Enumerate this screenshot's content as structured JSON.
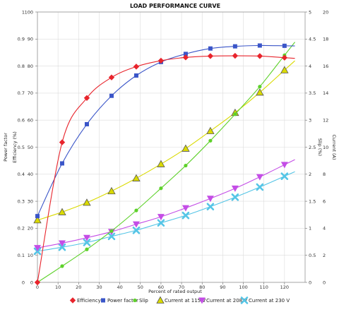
{
  "chart_data": {
    "type": "line",
    "title": "LOAD PERFORMANCE CURVE",
    "xlabel": "Percent of rated output",
    "xlim": [
      0,
      130
    ],
    "x_ticks": [
      "0",
      "10",
      "20",
      "30",
      "40",
      "50",
      "60",
      "70",
      "80",
      "90",
      "100",
      "110",
      "120"
    ],
    "left_axes": {
      "efficiency_label": "Efficiency (%)",
      "efficiency_lim": [
        0,
        100
      ],
      "efficiency_ticks": [
        "0",
        "10",
        "20",
        "30",
        "40",
        "50",
        "60",
        "70",
        "80",
        "90",
        "100"
      ],
      "power_factor_label": "Power factor",
      "power_factor_lim": [
        0,
        1
      ],
      "power_factor_ticks": [
        "0",
        "0.1",
        "0.2",
        "0.3",
        "0.4",
        "0.5",
        "0.6",
        "0.7",
        "0.8",
        "0.9",
        "1"
      ]
    },
    "right_axes": {
      "slip_label": "Slip (%)",
      "slip_lim": [
        0,
        5
      ],
      "slip_ticks": [
        "0",
        "0.5",
        "1",
        "1.5",
        "2",
        "2.5",
        "3",
        "3.5",
        "4",
        "4.5",
        "5"
      ],
      "current_label": "Current (A)",
      "current_lim": [
        0,
        20
      ],
      "current_ticks": [
        "0",
        "2",
        "4",
        "6",
        "8",
        "10",
        "12",
        "14",
        "16",
        "18",
        "20"
      ]
    },
    "grid": true,
    "legend_position": "bottom",
    "series": [
      {
        "name": "Efficiency",
        "axis": "efficiency",
        "color": "#e8242c",
        "marker": "diamond",
        "x": [
          0,
          12,
          24,
          36,
          48,
          60,
          72,
          84,
          96,
          108,
          120
        ],
        "y": [
          0,
          51.8,
          68.2,
          75.8,
          79.8,
          82,
          83.2,
          83.7,
          83.8,
          83.7,
          83.1
        ]
      },
      {
        "name": "Power factor",
        "axis": "power_factor",
        "color": "#3a55c8",
        "marker": "square",
        "x": [
          0,
          12,
          24,
          36,
          48,
          60,
          72,
          84,
          96,
          108,
          120
        ],
        "y": [
          0.245,
          0.44,
          0.585,
          0.69,
          0.765,
          0.815,
          0.845,
          0.865,
          0.873,
          0.876,
          0.875
        ]
      },
      {
        "name": "Slip",
        "axis": "slip",
        "color": "#5ed12b",
        "marker": "circle",
        "x": [
          0,
          12,
          24,
          36,
          48,
          60,
          72,
          84,
          96,
          108,
          120
        ],
        "y": [
          0,
          0.3,
          0.61,
          0.95,
          1.33,
          1.74,
          2.16,
          2.62,
          3.11,
          3.62,
          4.2
        ]
      },
      {
        "name": "Current at 115 V",
        "axis": "current",
        "color": "#dada00",
        "marker": "triangle",
        "x": [
          0,
          12,
          24,
          36,
          48,
          60,
          72,
          84,
          96,
          108,
          120
        ],
        "y": [
          4.6,
          5.2,
          5.9,
          6.75,
          7.7,
          8.75,
          9.9,
          11.2,
          12.55,
          14.05,
          15.7
        ]
      },
      {
        "name": "Current at 208 V",
        "axis": "current",
        "color": "#c44de6",
        "marker": "triangle-down",
        "x": [
          0,
          12,
          24,
          36,
          48,
          60,
          72,
          84,
          96,
          108,
          120
        ],
        "y": [
          2.55,
          2.9,
          3.3,
          3.75,
          4.3,
          4.85,
          5.5,
          6.2,
          6.95,
          7.8,
          8.7
        ]
      },
      {
        "name": "Current at 230 V",
        "axis": "current",
        "color": "#55c5e6",
        "marker": "x",
        "x": [
          0,
          12,
          24,
          36,
          48,
          60,
          72,
          84,
          96,
          108,
          120
        ],
        "y": [
          2.3,
          2.6,
          2.95,
          3.4,
          3.85,
          4.4,
          4.95,
          5.6,
          6.3,
          7.05,
          7.85
        ]
      }
    ]
  }
}
